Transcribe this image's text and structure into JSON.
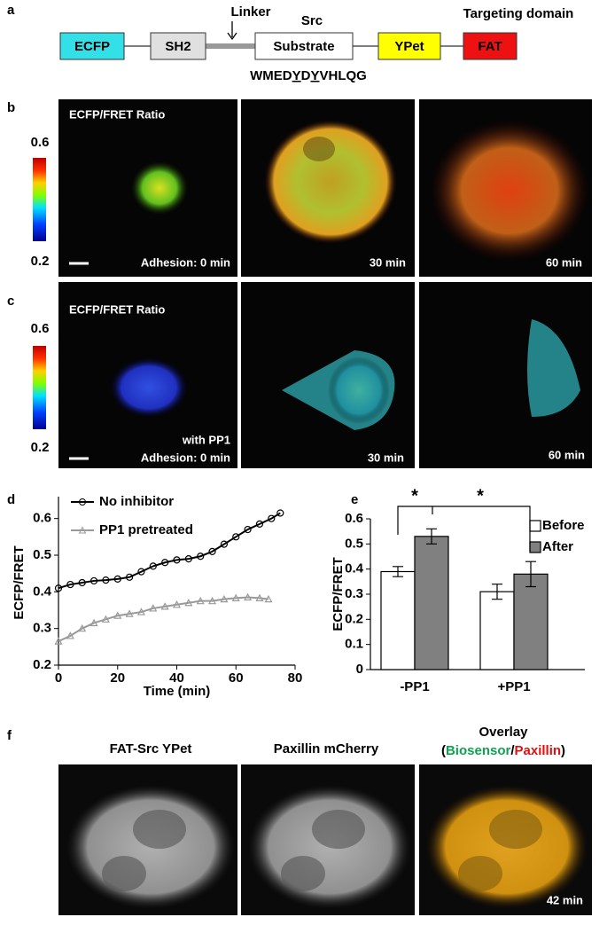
{
  "panel_labels": [
    "a",
    "b",
    "c",
    "d",
    "e",
    "f"
  ],
  "construct": {
    "domains": [
      "ECFP",
      "SH2",
      "Substrate",
      "YPet",
      "FAT"
    ],
    "linker_label": "Linker",
    "src_label": "Src",
    "targeting_label": "Targeting domain",
    "sequence_parts": [
      "WMED",
      "Y",
      "D",
      "Y",
      "VHLQG"
    ]
  },
  "panel_b": {
    "title": "ECFP/FRET Ratio",
    "colorbar_max": 0.6,
    "colorbar_min": 0.2,
    "frames": [
      "Adhesion: 0 min",
      "30 min",
      "60 min"
    ]
  },
  "panel_c": {
    "title": "ECFP/FRET Ratio",
    "colorbar_max": 0.6,
    "colorbar_min": 0.2,
    "condition": "with PP1",
    "frames": [
      "Adhesion: 0 min",
      "30 min",
      "60 min"
    ]
  },
  "chart_data": [
    {
      "type": "line",
      "xlabel": "Time (min)",
      "ylabel": "ECFP/FRET",
      "xlim": [
        0,
        80
      ],
      "xticks": [
        0,
        20,
        40,
        60,
        80
      ],
      "ylim": [
        0.2,
        0.65
      ],
      "yticks": [
        0.2,
        0.3,
        0.4,
        0.5,
        0.6
      ],
      "series": [
        {
          "name": "No inhibitor",
          "color": "#000000",
          "marker": "circle",
          "x": [
            0,
            4,
            8,
            12,
            16,
            20,
            24,
            28,
            32,
            36,
            40,
            44,
            48,
            52,
            56,
            60,
            64,
            68,
            72,
            75
          ],
          "values": [
            0.41,
            0.42,
            0.425,
            0.43,
            0.432,
            0.435,
            0.44,
            0.455,
            0.47,
            0.48,
            0.487,
            0.49,
            0.497,
            0.51,
            0.53,
            0.55,
            0.57,
            0.585,
            0.6,
            0.615
          ]
        },
        {
          "name": "PP1 pretreated",
          "color": "#999999",
          "marker": "triangle",
          "x": [
            0,
            4,
            8,
            12,
            16,
            20,
            24,
            28,
            32,
            36,
            40,
            44,
            48,
            52,
            56,
            60,
            64,
            68,
            71
          ],
          "values": [
            0.265,
            0.28,
            0.3,
            0.315,
            0.325,
            0.335,
            0.34,
            0.345,
            0.355,
            0.36,
            0.365,
            0.37,
            0.375,
            0.375,
            0.38,
            0.383,
            0.385,
            0.383,
            0.38
          ]
        }
      ]
    },
    {
      "type": "bar",
      "ylabel": "ECFP/FRET",
      "categories": [
        "-PP1",
        "+PP1"
      ],
      "ylim": [
        0,
        0.6
      ],
      "yticks": [
        0,
        0.1,
        0.2,
        0.3,
        0.4,
        0.5,
        0.6
      ],
      "annotations": [
        "*",
        "*"
      ],
      "series": [
        {
          "name": "Before",
          "color": "#ffffff",
          "values": [
            0.39,
            0.31
          ],
          "errors": [
            0.02,
            0.03
          ]
        },
        {
          "name": "After",
          "color": "#808080",
          "values": [
            0.53,
            0.38
          ],
          "errors": [
            0.03,
            0.05
          ]
        }
      ]
    }
  ],
  "panel_f": {
    "channels": [
      "FAT-Src YPet",
      "Paxillin mCherry"
    ],
    "overlay_title": "Overlay",
    "overlay_parts": [
      "(",
      "Biosensor",
      "/",
      "Paxillin",
      ")"
    ],
    "time": "42 min"
  }
}
